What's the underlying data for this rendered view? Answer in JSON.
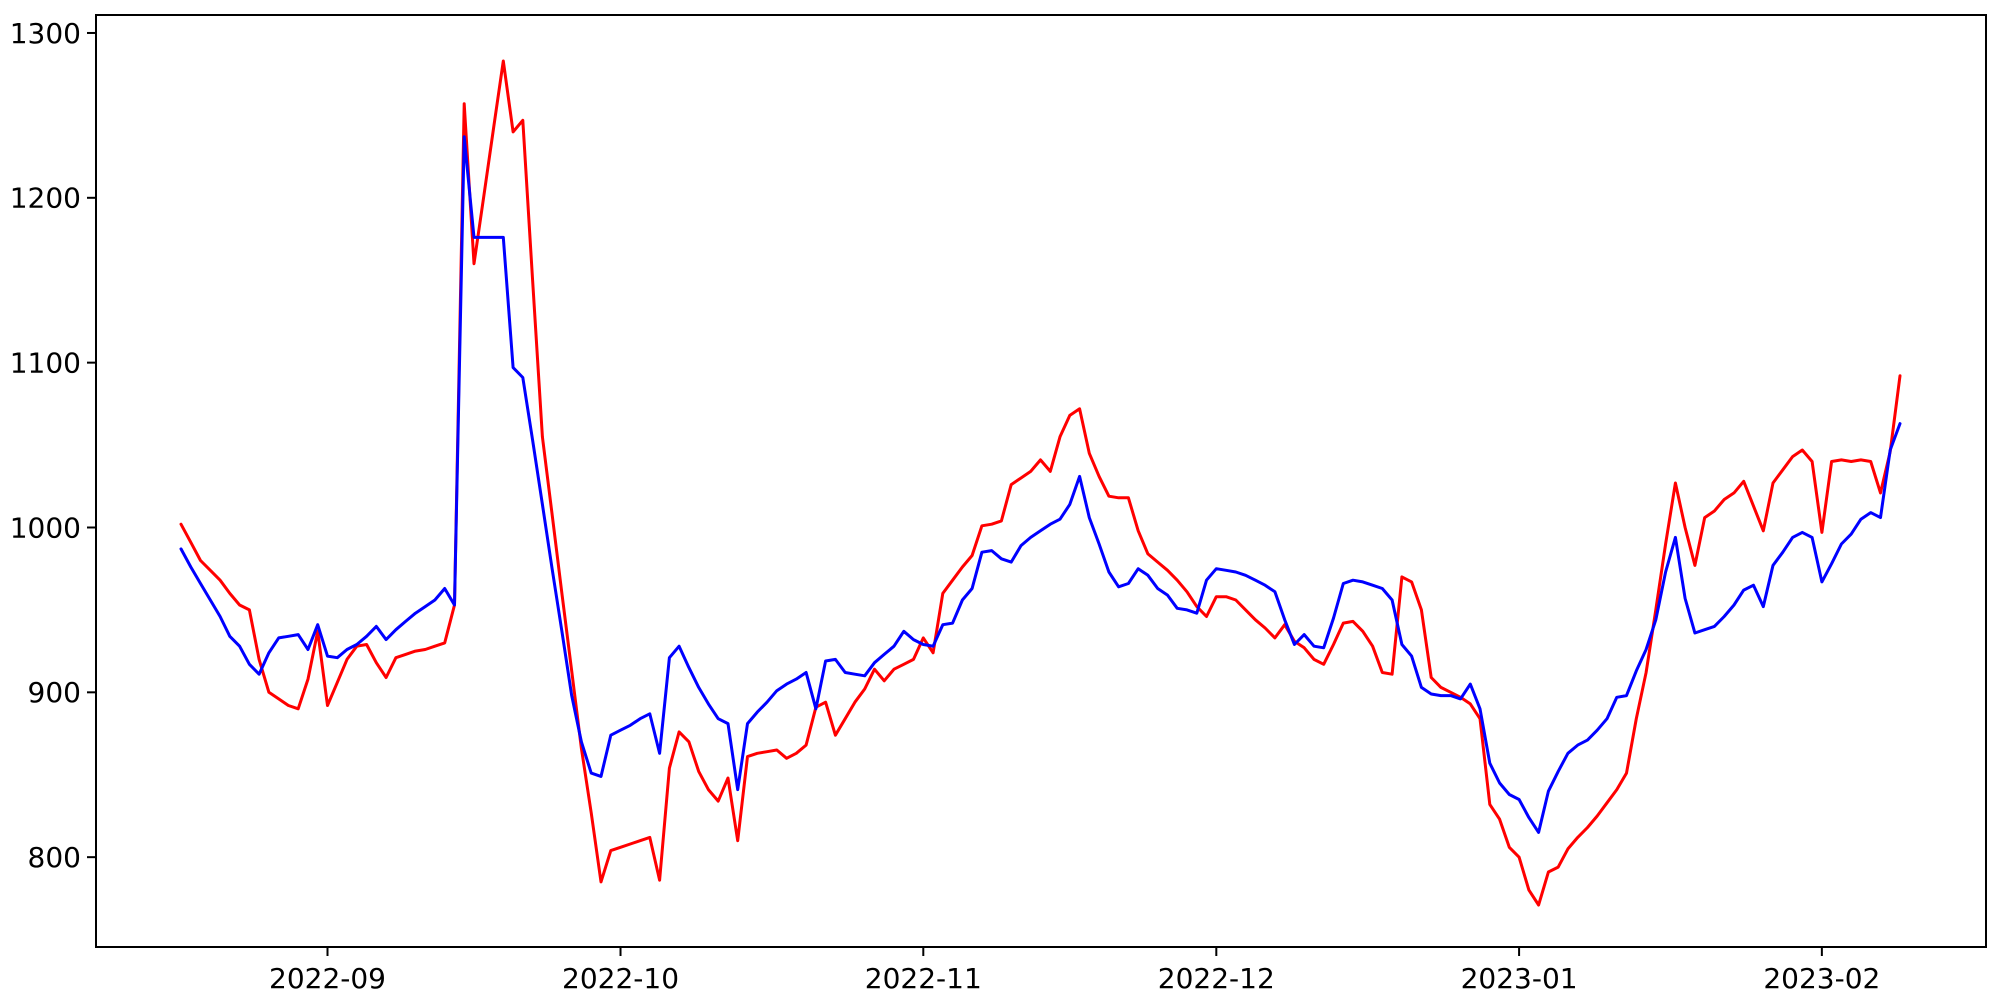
{
  "chart_data": {
    "type": "line",
    "title": "",
    "xlabel": "",
    "ylabel": "",
    "background": "#ffffff",
    "axis_color": "#000000",
    "grid": false,
    "legend": null,
    "ylim": [
      745.5,
      1310.9
    ],
    "y_ticks": [
      800,
      900,
      1000,
      1100,
      1200,
      1300
    ],
    "x_ticks": [
      {
        "label": "2022-09",
        "date": "2022-09-01"
      },
      {
        "label": "2022-10",
        "date": "2022-10-01"
      },
      {
        "label": "2022-11",
        "date": "2022-11-01"
      },
      {
        "label": "2022-12",
        "date": "2022-12-01"
      },
      {
        "label": "2023-01",
        "date": "2023-01-01"
      },
      {
        "label": "2023-02",
        "date": "2023-02-01"
      }
    ],
    "dates": [
      "2022-08-17",
      "2022-08-18",
      "2022-08-19",
      "2022-08-20",
      "2022-08-21",
      "2022-08-22",
      "2022-08-23",
      "2022-08-24",
      "2022-08-25",
      "2022-08-26",
      "2022-08-27",
      "2022-08-28",
      "2022-08-29",
      "2022-08-30",
      "2022-08-31",
      "2022-09-01",
      "2022-09-02",
      "2022-09-03",
      "2022-09-04",
      "2022-09-05",
      "2022-09-06",
      "2022-09-07",
      "2022-09-08",
      "2022-09-09",
      "2022-09-10",
      "2022-09-11",
      "2022-09-12",
      "2022-09-13",
      "2022-09-14",
      "2022-09-15",
      "2022-09-16",
      "2022-09-17",
      "2022-09-18",
      "2022-09-19",
      "2022-09-20",
      "2022-09-21",
      "2022-09-22",
      "2022-09-23",
      "2022-09-24",
      "2022-09-25",
      "2022-09-26",
      "2022-09-27",
      "2022-09-28",
      "2022-09-29",
      "2022-09-30",
      "2022-10-01",
      "2022-10-02",
      "2022-10-03",
      "2022-10-04",
      "2022-10-05",
      "2022-10-06",
      "2022-10-07",
      "2022-10-08",
      "2022-10-09",
      "2022-10-10",
      "2022-10-11",
      "2022-10-12",
      "2022-10-13",
      "2022-10-14",
      "2022-10-15",
      "2022-10-16",
      "2022-10-17",
      "2022-10-18",
      "2022-10-19",
      "2022-10-20",
      "2022-10-21",
      "2022-10-22",
      "2022-10-23",
      "2022-10-24",
      "2022-10-25",
      "2022-10-26",
      "2022-10-27",
      "2022-10-28",
      "2022-10-29",
      "2022-10-30",
      "2022-10-31",
      "2022-11-01",
      "2022-11-02",
      "2022-11-03",
      "2022-11-04",
      "2022-11-05",
      "2022-11-06",
      "2022-11-07",
      "2022-11-08",
      "2022-11-09",
      "2022-11-10",
      "2022-11-11",
      "2022-11-12",
      "2022-11-13",
      "2022-11-14",
      "2022-11-15",
      "2022-11-16",
      "2022-11-17",
      "2022-11-18",
      "2022-11-19",
      "2022-11-20",
      "2022-11-21",
      "2022-11-22",
      "2022-11-23",
      "2022-11-24",
      "2022-11-25",
      "2022-11-26",
      "2022-11-27",
      "2022-11-28",
      "2022-11-29",
      "2022-11-30",
      "2022-12-01",
      "2022-12-02",
      "2022-12-03",
      "2022-12-04",
      "2022-12-05",
      "2022-12-06",
      "2022-12-07",
      "2022-12-08",
      "2022-12-09",
      "2022-12-10",
      "2022-12-11",
      "2022-12-12",
      "2022-12-13",
      "2022-12-14",
      "2022-12-15",
      "2022-12-16",
      "2022-12-17",
      "2022-12-18",
      "2022-12-19",
      "2022-12-20",
      "2022-12-21",
      "2022-12-22",
      "2022-12-23",
      "2022-12-24",
      "2022-12-25",
      "2022-12-26",
      "2022-12-27",
      "2022-12-28",
      "2022-12-29",
      "2022-12-30",
      "2022-12-31",
      "2023-01-01",
      "2023-01-02",
      "2023-01-03",
      "2023-01-04",
      "2023-01-05",
      "2023-01-06",
      "2023-01-07",
      "2023-01-08",
      "2023-01-09",
      "2023-01-10",
      "2023-01-11",
      "2023-01-12",
      "2023-01-13",
      "2023-01-14",
      "2023-01-15",
      "2023-01-16",
      "2023-01-17",
      "2023-01-18",
      "2023-01-19",
      "2023-01-20",
      "2023-01-21",
      "2023-01-22",
      "2023-01-23",
      "2023-01-24",
      "2023-01-25",
      "2023-01-26",
      "2023-01-27",
      "2023-01-28",
      "2023-01-29",
      "2023-01-30",
      "2023-01-31",
      "2023-02-01",
      "2023-02-02",
      "2023-02-03",
      "2023-02-04",
      "2023-02-05",
      "2023-02-06",
      "2023-02-07",
      "2023-02-08",
      "2023-02-09"
    ],
    "series": [
      {
        "name": "red",
        "color": "#ff0000",
        "values": [
          1002,
          991,
          980,
          974,
          968,
          960,
          953,
          950,
          920,
          900,
          896,
          892,
          890,
          908,
          937,
          892,
          906,
          920,
          928,
          929,
          918,
          909,
          921,
          923,
          925,
          926,
          928,
          930,
          953,
          1257,
          1160,
          1201,
          1242,
          1283,
          1240,
          1247,
          1150,
          1055,
          1008,
          960,
          913,
          866,
          827,
          785,
          804,
          806,
          808,
          810,
          812,
          786,
          854,
          876,
          870,
          852,
          841,
          834,
          848,
          810,
          861,
          863,
          864,
          865,
          860,
          863,
          868,
          891,
          894,
          874,
          884,
          894,
          902,
          914,
          907,
          914,
          917,
          920,
          933,
          924,
          960,
          968,
          976,
          983,
          1001,
          1002,
          1004,
          1026,
          1030,
          1034,
          1041,
          1034,
          1055,
          1068,
          1072,
          1045,
          1031,
          1019,
          1018,
          1018,
          998,
          984,
          979,
          974,
          968,
          961,
          952,
          946,
          958,
          958,
          956,
          950,
          944,
          939,
          933,
          941,
          931,
          927,
          920,
          917,
          929,
          942,
          943,
          937,
          928,
          912,
          911,
          970,
          967,
          950,
          909,
          903,
          900,
          897,
          893,
          884,
          832,
          823,
          806,
          800,
          780,
          771,
          791,
          794,
          805,
          812,
          818,
          825,
          833,
          841,
          851,
          884,
          912,
          950,
          990,
          1027,
          1000,
          977,
          1006,
          1010,
          1017,
          1021,
          1028,
          1013,
          998,
          1027,
          1035,
          1043,
          1047,
          1040,
          997,
          1040,
          1041,
          1040,
          1041,
          1040,
          1021,
          1046,
          1092
        ]
      },
      {
        "name": "blue",
        "color": "#0000ff",
        "values": [
          987,
          976,
          966,
          956,
          946,
          934,
          928,
          917,
          911,
          924,
          933,
          934,
          935,
          926,
          941,
          922,
          921,
          926,
          929,
          934,
          940,
          932,
          938,
          943,
          948,
          952,
          956,
          963,
          953,
          1237,
          1176,
          1176,
          1176,
          1176,
          1097,
          1091,
          1053,
          1014,
          975,
          937,
          898,
          870,
          851,
          849,
          874,
          877,
          880,
          884,
          887,
          863,
          921,
          928,
          915,
          903,
          893,
          884,
          881,
          841,
          881,
          888,
          894,
          901,
          905,
          908,
          912,
          890,
          919,
          920,
          912,
          911,
          910,
          918,
          923,
          928,
          937,
          932,
          929,
          928,
          941,
          942,
          956,
          963,
          985,
          986,
          981,
          979,
          989,
          994,
          998,
          1002,
          1005,
          1014,
          1031,
          1006,
          990,
          973,
          964,
          966,
          975,
          971,
          963,
          959,
          951,
          950,
          948,
          968,
          975,
          974,
          973,
          971,
          968,
          965,
          961,
          944,
          929,
          935,
          928,
          927,
          945,
          966,
          968,
          967,
          965,
          963,
          956,
          929,
          922,
          903,
          899,
          898,
          898,
          896,
          905,
          890,
          857,
          845,
          838,
          835,
          824,
          815,
          840,
          852,
          863,
          868,
          871,
          877,
          884,
          897,
          898,
          913,
          926,
          944,
          973,
          994,
          957,
          936,
          938,
          940,
          946,
          953,
          962,
          965,
          952,
          977,
          985,
          994,
          997,
          994,
          967,
          978,
          990,
          996,
          1005,
          1009,
          1006,
          1047,
          1063
        ]
      }
    ]
  }
}
